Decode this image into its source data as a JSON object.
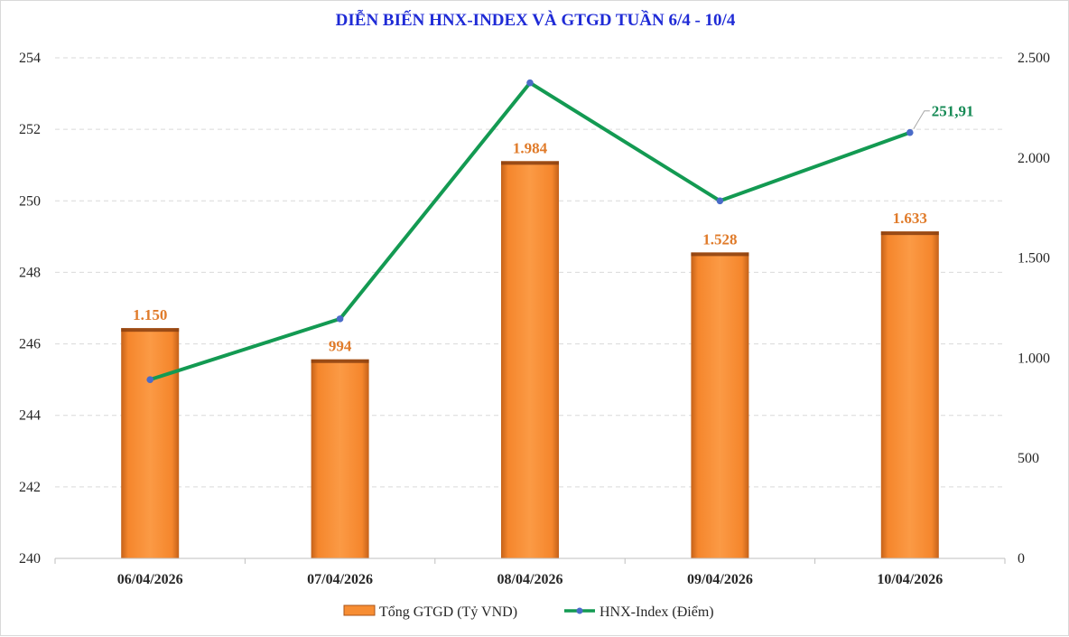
{
  "chart_data": {
    "type": "bar",
    "title": "DIỄN BIẾN HNX-INDEX VÀ GTGD TUẦN 6/4 - 10/4",
    "categories": [
      "06/04/2026",
      "07/04/2026",
      "08/04/2026",
      "09/04/2026",
      "10/04/2026"
    ],
    "series": [
      {
        "name": "Tổng GTGD (Tỷ VND)",
        "type": "bar",
        "axis": "right",
        "values": [
          1150,
          994,
          1984,
          1528,
          1633
        ],
        "labels": [
          "1.150",
          "994",
          "1.984",
          "1.528",
          "1.633"
        ],
        "color": "#f78d33"
      },
      {
        "name": "HNX-Index (Điểm)",
        "type": "line",
        "axis": "left",
        "values": [
          245.0,
          246.7,
          253.3,
          250.0,
          251.91
        ],
        "last_label": "251,91",
        "color": "#139a52",
        "marker_color": "#4a6bc8"
      }
    ],
    "y_left": {
      "lim": [
        240,
        254
      ],
      "ticks": [
        240,
        242,
        244,
        246,
        248,
        250,
        252,
        254
      ],
      "tick_labels": [
        "240",
        "242",
        "244",
        "246",
        "248",
        "250",
        "252",
        "254"
      ]
    },
    "y_right": {
      "lim": [
        0,
        2500
      ],
      "ticks": [
        0,
        500,
        1000,
        1500,
        2000,
        2500
      ],
      "tick_labels": [
        "0",
        "500",
        "1.000",
        "1.500",
        "2.000",
        "2.500"
      ]
    },
    "grid": true,
    "legend_position": "bottom"
  }
}
